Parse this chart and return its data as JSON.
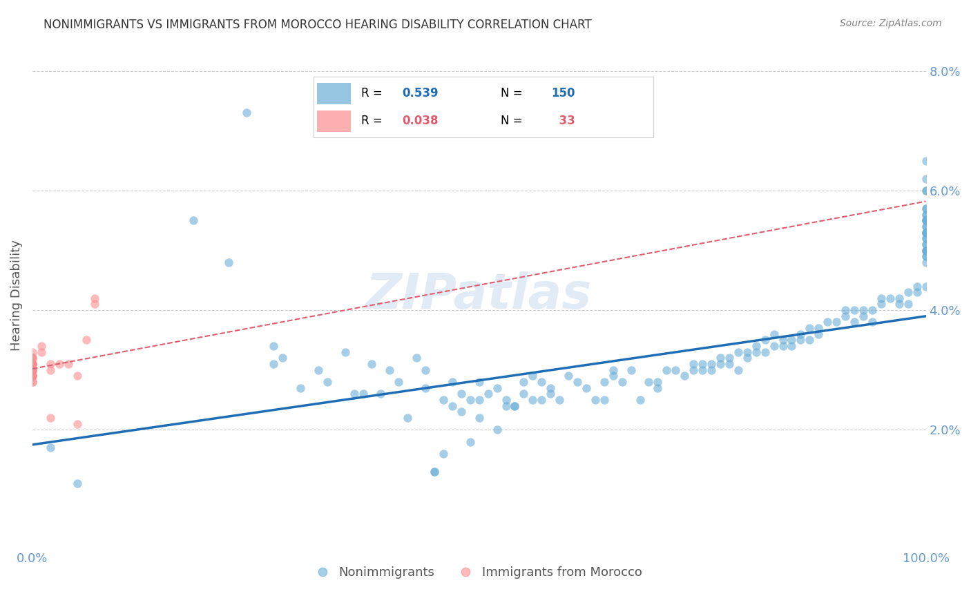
{
  "title": "NONIMMIGRANTS VS IMMIGRANTS FROM MOROCCO HEARING DISABILITY CORRELATION CHART",
  "source": "Source: ZipAtlas.com",
  "xlabel": "",
  "ylabel": "Hearing Disability",
  "xlim": [
    0,
    1.0
  ],
  "ylim": [
    0,
    0.085
  ],
  "yticks": [
    0.02,
    0.04,
    0.06,
    0.08
  ],
  "ytick_labels": [
    "2.0%",
    "4.0%",
    "6.0%",
    "8.0%"
  ],
  "xticks": [
    0,
    0.1,
    0.2,
    0.3,
    0.4,
    0.5,
    0.6,
    0.7,
    0.8,
    0.9,
    1.0
  ],
  "xtick_labels": [
    "0.0%",
    "",
    "",
    "",
    "",
    "",
    "",
    "",
    "",
    "",
    "100.0%"
  ],
  "nonimm_R": 0.539,
  "nonimm_N": 150,
  "imm_R": 0.038,
  "imm_N": 33,
  "nonimm_color": "#6baed6",
  "imm_color": "#fc8d8d",
  "nonimm_line_color": "#1f6eb5",
  "imm_line_color": "#e05c6e",
  "legend_label_nonimm": "Nonimmigrants",
  "legend_label_imm": "Immigrants from Morocco",
  "watermark": "ZIPatlas",
  "background_color": "#ffffff",
  "grid_color": "#cccccc",
  "title_color": "#333333",
  "axis_label_color": "#555555",
  "tick_color": "#6699cc",
  "nonimm_scatter_x": [
    0.02,
    0.05,
    0.18,
    0.22,
    0.24,
    0.27,
    0.27,
    0.28,
    0.3,
    0.32,
    0.33,
    0.35,
    0.36,
    0.37,
    0.38,
    0.39,
    0.4,
    0.41,
    0.42,
    0.43,
    0.44,
    0.44,
    0.45,
    0.45,
    0.46,
    0.46,
    0.47,
    0.47,
    0.48,
    0.48,
    0.49,
    0.49,
    0.5,
    0.5,
    0.5,
    0.51,
    0.52,
    0.52,
    0.53,
    0.53,
    0.54,
    0.54,
    0.55,
    0.55,
    0.56,
    0.56,
    0.57,
    0.57,
    0.58,
    0.58,
    0.59,
    0.6,
    0.61,
    0.62,
    0.63,
    0.64,
    0.64,
    0.65,
    0.65,
    0.66,
    0.67,
    0.68,
    0.69,
    0.7,
    0.7,
    0.71,
    0.72,
    0.73,
    0.74,
    0.74,
    0.75,
    0.75,
    0.76,
    0.76,
    0.77,
    0.77,
    0.78,
    0.78,
    0.79,
    0.79,
    0.8,
    0.8,
    0.81,
    0.81,
    0.82,
    0.82,
    0.83,
    0.83,
    0.84,
    0.84,
    0.85,
    0.85,
    0.86,
    0.86,
    0.87,
    0.87,
    0.88,
    0.88,
    0.89,
    0.9,
    0.91,
    0.91,
    0.92,
    0.92,
    0.93,
    0.93,
    0.94,
    0.94,
    0.95,
    0.95,
    0.96,
    0.97,
    0.97,
    0.98,
    0.98,
    0.99,
    0.99,
    1.0,
    1.0,
    1.0,
    1.0,
    1.0,
    1.0,
    1.0,
    1.0,
    1.0,
    1.0,
    1.0,
    1.0,
    1.0,
    1.0,
    1.0,
    1.0,
    1.0,
    1.0,
    1.0,
    1.0,
    1.0,
    1.0,
    1.0,
    1.0,
    1.0,
    1.0,
    1.0,
    1.0,
    1.0,
    1.0
  ],
  "nonimm_scatter_y": [
    0.017,
    0.011,
    0.055,
    0.048,
    0.073,
    0.034,
    0.031,
    0.032,
    0.027,
    0.03,
    0.028,
    0.033,
    0.026,
    0.026,
    0.031,
    0.026,
    0.03,
    0.028,
    0.022,
    0.032,
    0.03,
    0.027,
    0.013,
    0.013,
    0.025,
    0.016,
    0.024,
    0.028,
    0.026,
    0.023,
    0.025,
    0.018,
    0.028,
    0.025,
    0.022,
    0.026,
    0.027,
    0.02,
    0.025,
    0.024,
    0.024,
    0.024,
    0.026,
    0.028,
    0.029,
    0.025,
    0.028,
    0.025,
    0.027,
    0.026,
    0.025,
    0.029,
    0.028,
    0.027,
    0.025,
    0.028,
    0.025,
    0.03,
    0.029,
    0.028,
    0.03,
    0.025,
    0.028,
    0.027,
    0.028,
    0.03,
    0.03,
    0.029,
    0.03,
    0.031,
    0.03,
    0.031,
    0.03,
    0.031,
    0.032,
    0.031,
    0.031,
    0.032,
    0.03,
    0.033,
    0.032,
    0.033,
    0.033,
    0.034,
    0.033,
    0.035,
    0.034,
    0.036,
    0.034,
    0.035,
    0.034,
    0.035,
    0.035,
    0.036,
    0.035,
    0.037,
    0.036,
    0.037,
    0.038,
    0.038,
    0.04,
    0.039,
    0.04,
    0.038,
    0.039,
    0.04,
    0.038,
    0.04,
    0.041,
    0.042,
    0.042,
    0.041,
    0.042,
    0.041,
    0.043,
    0.044,
    0.043,
    0.044,
    0.051,
    0.05,
    0.049,
    0.048,
    0.05,
    0.052,
    0.053,
    0.049,
    0.051,
    0.053,
    0.054,
    0.055,
    0.05,
    0.053,
    0.055,
    0.056,
    0.053,
    0.056,
    0.057,
    0.055,
    0.057,
    0.06,
    0.05,
    0.052,
    0.054,
    0.06,
    0.062,
    0.065,
    0.055
  ],
  "imm_scatter_x": [
    0.0,
    0.0,
    0.0,
    0.0,
    0.0,
    0.0,
    0.0,
    0.0,
    0.0,
    0.0,
    0.0,
    0.0,
    0.0,
    0.0,
    0.0,
    0.0,
    0.0,
    0.0,
    0.0,
    0.0,
    0.0,
    0.01,
    0.01,
    0.02,
    0.02,
    0.02,
    0.03,
    0.04,
    0.05,
    0.05,
    0.06,
    0.07,
    0.07
  ],
  "imm_scatter_y": [
    0.029,
    0.031,
    0.029,
    0.03,
    0.031,
    0.028,
    0.029,
    0.03,
    0.03,
    0.03,
    0.031,
    0.029,
    0.031,
    0.032,
    0.031,
    0.033,
    0.032,
    0.03,
    0.028,
    0.029,
    0.032,
    0.033,
    0.034,
    0.03,
    0.031,
    0.022,
    0.031,
    0.031,
    0.029,
    0.021,
    0.035,
    0.041,
    0.042
  ],
  "nonimm_line_x": [
    0.0,
    1.0
  ],
  "nonimm_line_y_start": 0.0175,
  "nonimm_line_y_end": 0.039,
  "imm_line_x": [
    0.0,
    0.1
  ],
  "imm_line_y_start": 0.0302,
  "imm_line_y_end": 0.033
}
